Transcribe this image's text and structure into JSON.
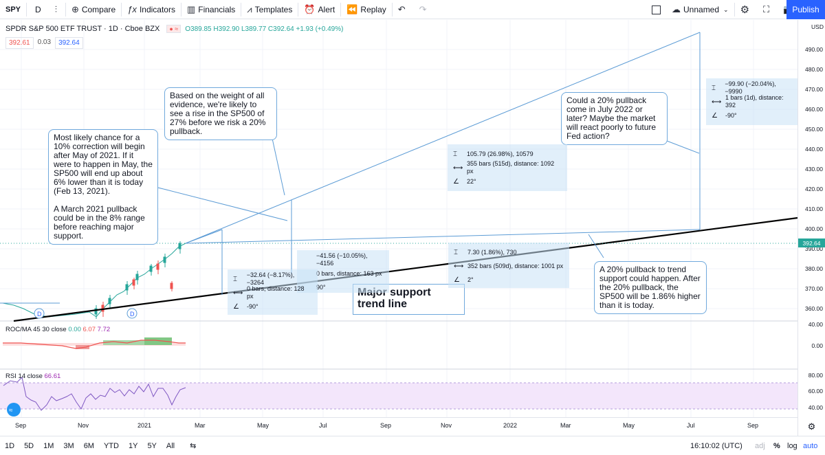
{
  "toolbar": {
    "symbol": "SPY",
    "interval": "D",
    "compare": "Compare",
    "indicators": "Indicators",
    "financials": "Financials",
    "templates": "Templates",
    "alert": "Alert",
    "replay": "Replay",
    "layout_name": "Unnamed",
    "publish": "Publish"
  },
  "legend": {
    "title": "SPDR S&P 500 ETF TRUST · 1D · Cboe BZX",
    "ohlc": "O389.85 H392.90 L389.77 C392.64 +1.93 (+0.49%)",
    "bid": "392.61",
    "spread": "0.03",
    "ask": "392.64"
  },
  "price_axis": {
    "currency": "USD",
    "ticks": [
      "490.00",
      "480.00",
      "470.00",
      "460.00",
      "450.00",
      "440.00",
      "430.00",
      "420.00",
      "410.00",
      "400.00",
      "390.00",
      "380.00",
      "370.00",
      "360.00"
    ],
    "current_price": "392.64",
    "roc_ticks": [
      "40.00",
      "0.00"
    ],
    "rsi_ticks": [
      "80.00",
      "60.00",
      "40.00"
    ]
  },
  "time_axis": [
    "Sep",
    "Nov",
    "2021",
    "Mar",
    "May",
    "Jul",
    "Sep",
    "Nov",
    "2022",
    "Mar",
    "May",
    "Jul",
    "Sep"
  ],
  "notes": {
    "evidence": "Based on the weight of all evidence, we're likely to see a rise in the SP500 of 27% before we risk a 20% pullback.",
    "correction_p1": "Most likely chance for a 10% correction will begin after May of 2021. If it were to happen in May, the SP500 will end up about 6% lower than it is today (Feb 13, 2021).",
    "correction_p2": "A March 2021 pullback could be in the 8% range before reaching major support.",
    "july": "Could a 20% pullback come in July 2022 or later? Maybe the market will react poorly to future Fed action?",
    "trend": "A 20% pullback to trend support could happen. After the 20% pullback, the SP500 will be 1.86% higher than it is today.",
    "support": "Major support trend line"
  },
  "measures": {
    "m_rise": [
      "105.79 (26.98%), 10579",
      "355 bars (515d), distance: 1092 px",
      "22°"
    ],
    "m_drop20": [
      "−99.90 (−20.04%), −9990",
      "1 bars (1d), distance: 392",
      "-90°"
    ],
    "m_small": [
      "7.30 (1.86%), 730",
      "352 bars (509d), distance: 1001 px",
      "2°"
    ],
    "m_10pct": [
      "−41.56 (−10.05%), −4156",
      "0 bars, distance: 163 px",
      "90°"
    ],
    "m_8pct": [
      "−32.64 (−8.17%), −3264",
      "0 bars, distance: 128 px",
      "-90°"
    ]
  },
  "indicators": {
    "roc_label": "ROC/MA 45 30 close",
    "roc_v1": "0.00",
    "roc_v2": "6.07",
    "roc_v3": "7.72",
    "rsi_label": "RSI 14 close",
    "rsi_value": "66.61"
  },
  "bottom_bar": {
    "ranges": [
      "1D",
      "5D",
      "1M",
      "3M",
      "6M",
      "YTD",
      "1Y",
      "5Y",
      "All"
    ],
    "time": "16:10:02 (UTC)",
    "adj": "adj",
    "percent": "%",
    "log": "log",
    "auto": "auto"
  },
  "colors": {
    "up": "#26a69a",
    "down": "#ef5350",
    "drawing": "#5b9bd5",
    "accent": "#2962ff"
  }
}
